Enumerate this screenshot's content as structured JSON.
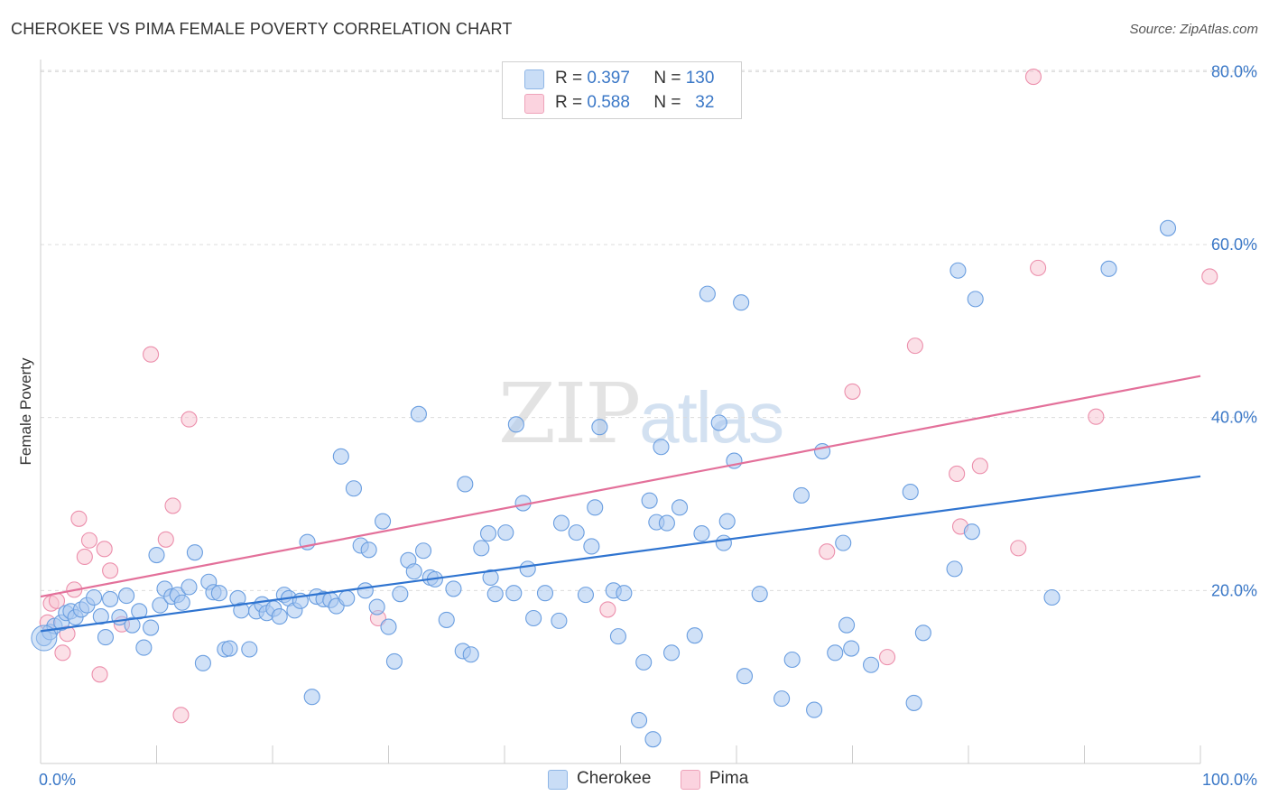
{
  "title": "CHEROKEE VS PIMA FEMALE POVERTY CORRELATION CHART",
  "source": "Source: ZipAtlas.com",
  "watermark": {
    "zip": "ZIP",
    "atlas": "atlas"
  },
  "legend": [
    {
      "r_label": "R =",
      "r_value": "0.397",
      "n_label": "N =",
      "n_value": "130",
      "color": "#a9c9f0"
    },
    {
      "r_label": "R =",
      "r_value": "0.588",
      "n_label": "N =",
      "n_value": "32",
      "color": "#f7b9cc"
    }
  ],
  "colors": {
    "cherokee_fill": "#a9c9f0",
    "cherokee_stroke": "#6a9ee0",
    "cherokee_line": "#2f74d0",
    "pima_fill": "#f7c6d4",
    "pima_stroke": "#ec8fac",
    "pima_line": "#e3709a",
    "tick_label": "#3b78c7",
    "grid": "#dcdcdc"
  },
  "chart_data": {
    "type": "scatter",
    "title": "CHEROKEE VS PIMA FEMALE POVERTY CORRELATION CHART",
    "xlabel": "",
    "ylabel": "Female Poverty",
    "xlim": [
      0,
      100
    ],
    "ylim": [
      0,
      82
    ],
    "x_tick_labels": [
      "0.0%",
      "100.0%"
    ],
    "y_ticks": [
      20,
      40,
      60,
      80
    ],
    "y_tick_labels": [
      "20.0%",
      "40.0%",
      "60.0%",
      "80.0%"
    ],
    "grid": "horizontal dashed",
    "legend_position": "top-center",
    "series": [
      {
        "name": "Cherokee",
        "trend": [
          [
            0,
            15.3
          ],
          [
            100,
            33.2
          ]
        ],
        "points": [
          [
            0.3,
            14.5
          ],
          [
            0.8,
            15.2
          ],
          [
            1.2,
            15.9
          ],
          [
            1.8,
            16.3
          ],
          [
            2.2,
            17.4
          ],
          [
            2.6,
            17.6
          ],
          [
            3.0,
            16.9
          ],
          [
            3.5,
            17.8
          ],
          [
            4.0,
            18.3
          ],
          [
            4.6,
            19.2
          ],
          [
            5.2,
            17.0
          ],
          [
            5.6,
            14.6
          ],
          [
            6.0,
            19.0
          ],
          [
            6.8,
            16.9
          ],
          [
            7.4,
            19.4
          ],
          [
            7.9,
            16.0
          ],
          [
            8.5,
            17.6
          ],
          [
            8.9,
            13.4
          ],
          [
            9.5,
            15.7
          ],
          [
            10.0,
            24.1
          ],
          [
            10.3,
            18.3
          ],
          [
            10.7,
            20.2
          ],
          [
            11.3,
            19.3
          ],
          [
            11.8,
            19.5
          ],
          [
            12.2,
            18.6
          ],
          [
            12.8,
            20.4
          ],
          [
            13.3,
            24.4
          ],
          [
            14.0,
            11.6
          ],
          [
            14.5,
            21.0
          ],
          [
            14.9,
            19.8
          ],
          [
            15.4,
            19.7
          ],
          [
            15.9,
            13.2
          ],
          [
            16.3,
            13.3
          ],
          [
            17.0,
            19.1
          ],
          [
            17.3,
            17.7
          ],
          [
            18.0,
            13.2
          ],
          [
            18.6,
            17.6
          ],
          [
            19.1,
            18.4
          ],
          [
            19.5,
            17.4
          ],
          [
            20.1,
            17.9
          ],
          [
            20.6,
            17.0
          ],
          [
            21.0,
            19.5
          ],
          [
            21.4,
            19.1
          ],
          [
            21.9,
            17.7
          ],
          [
            22.4,
            18.8
          ],
          [
            23.0,
            25.6
          ],
          [
            23.4,
            7.7
          ],
          [
            23.8,
            19.3
          ],
          [
            24.4,
            19.0
          ],
          [
            25.0,
            18.9
          ],
          [
            25.5,
            18.2
          ],
          [
            25.9,
            35.5
          ],
          [
            26.4,
            19.1
          ],
          [
            27.0,
            31.8
          ],
          [
            27.6,
            25.2
          ],
          [
            28.0,
            20.0
          ],
          [
            28.3,
            24.7
          ],
          [
            29.0,
            18.1
          ],
          [
            29.5,
            28.0
          ],
          [
            30.0,
            15.8
          ],
          [
            30.5,
            11.8
          ],
          [
            31.0,
            19.6
          ],
          [
            31.7,
            23.5
          ],
          [
            32.2,
            22.2
          ],
          [
            32.6,
            40.4
          ],
          [
            33.0,
            24.6
          ],
          [
            33.6,
            21.5
          ],
          [
            34.0,
            21.3
          ],
          [
            35.0,
            16.6
          ],
          [
            35.6,
            20.2
          ],
          [
            36.4,
            13.0
          ],
          [
            36.6,
            32.3
          ],
          [
            37.1,
            12.6
          ],
          [
            38.0,
            24.9
          ],
          [
            38.6,
            26.6
          ],
          [
            38.8,
            21.5
          ],
          [
            39.2,
            19.6
          ],
          [
            40.1,
            26.7
          ],
          [
            40.8,
            19.7
          ],
          [
            41.0,
            39.2
          ],
          [
            41.6,
            30.1
          ],
          [
            42.0,
            22.5
          ],
          [
            42.5,
            16.8
          ],
          [
            43.5,
            19.7
          ],
          [
            44.7,
            16.5
          ],
          [
            44.9,
            27.8
          ],
          [
            46.2,
            26.7
          ],
          [
            47.0,
            19.5
          ],
          [
            47.5,
            25.1
          ],
          [
            47.8,
            29.6
          ],
          [
            48.2,
            38.9
          ],
          [
            49.4,
            20.0
          ],
          [
            49.8,
            14.7
          ],
          [
            50.3,
            19.7
          ],
          [
            51.6,
            5.0
          ],
          [
            52.0,
            11.7
          ],
          [
            52.5,
            30.4
          ],
          [
            52.8,
            2.8
          ],
          [
            53.1,
            27.9
          ],
          [
            53.5,
            36.6
          ],
          [
            54.0,
            27.8
          ],
          [
            54.4,
            12.8
          ],
          [
            55.1,
            29.6
          ],
          [
            56.4,
            14.8
          ],
          [
            57.0,
            26.6
          ],
          [
            57.5,
            54.3
          ],
          [
            58.5,
            39.4
          ],
          [
            58.9,
            25.5
          ],
          [
            59.2,
            28.0
          ],
          [
            59.8,
            35.0
          ],
          [
            60.4,
            53.3
          ],
          [
            60.7,
            10.1
          ],
          [
            62.0,
            19.6
          ],
          [
            63.9,
            7.5
          ],
          [
            64.8,
            12.0
          ],
          [
            65.6,
            31.0
          ],
          [
            66.7,
            6.2
          ],
          [
            67.4,
            36.1
          ],
          [
            68.5,
            12.8
          ],
          [
            69.2,
            25.5
          ],
          [
            69.5,
            16.0
          ],
          [
            69.9,
            13.3
          ],
          [
            71.6,
            11.4
          ],
          [
            75.0,
            31.4
          ],
          [
            75.3,
            7.0
          ],
          [
            76.1,
            15.1
          ],
          [
            78.8,
            22.5
          ],
          [
            79.1,
            57.0
          ],
          [
            80.3,
            26.8
          ],
          [
            80.6,
            53.7
          ],
          [
            87.2,
            19.2
          ],
          [
            92.1,
            57.2
          ],
          [
            97.2,
            61.9
          ]
        ]
      },
      {
        "name": "Pima",
        "trend": [
          [
            0,
            19.3
          ],
          [
            100,
            44.8
          ]
        ],
        "points": [
          [
            0.6,
            16.3
          ],
          [
            0.9,
            18.5
          ],
          [
            1.4,
            18.8
          ],
          [
            1.9,
            12.8
          ],
          [
            2.3,
            15.0
          ],
          [
            2.9,
            20.1
          ],
          [
            3.3,
            28.3
          ],
          [
            3.8,
            23.9
          ],
          [
            4.2,
            25.8
          ],
          [
            5.1,
            10.3
          ],
          [
            5.5,
            24.8
          ],
          [
            6.0,
            22.3
          ],
          [
            7.0,
            16.1
          ],
          [
            9.5,
            47.3
          ],
          [
            10.8,
            25.9
          ],
          [
            11.4,
            29.8
          ],
          [
            12.1,
            5.6
          ],
          [
            12.8,
            39.8
          ],
          [
            29.1,
            16.8
          ],
          [
            48.9,
            17.8
          ],
          [
            67.8,
            24.5
          ],
          [
            70.0,
            43.0
          ],
          [
            73.0,
            12.3
          ],
          [
            75.4,
            48.3
          ],
          [
            79.0,
            33.5
          ],
          [
            79.3,
            27.4
          ],
          [
            81.0,
            34.4
          ],
          [
            84.3,
            24.9
          ],
          [
            85.6,
            79.4
          ],
          [
            86.0,
            57.3
          ],
          [
            91.0,
            40.1
          ],
          [
            100.8,
            56.3
          ]
        ]
      }
    ]
  }
}
